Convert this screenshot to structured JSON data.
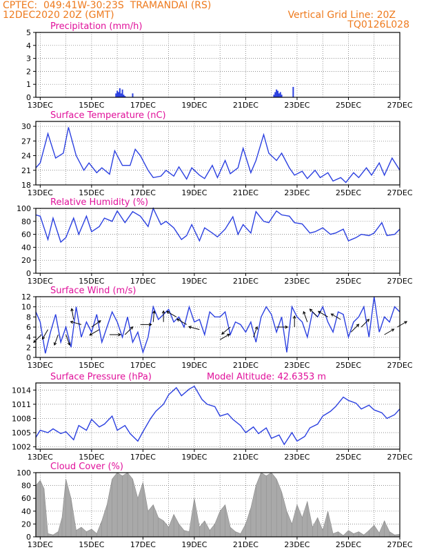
{
  "header": {
    "line1": "CPTEC:  049:41W-30:23S  TRAMANDAI (RS)",
    "line2": "12DEC2020 20Z (GMT)",
    "grid_note": "Vertical Grid Line: 20Z",
    "code": "TQ0126L028",
    "text_color": "#ee7a1d"
  },
  "colors": {
    "title": "#e0109a",
    "line": "#2a3fe0",
    "cloud": "#a9a9a9",
    "grid": "#666666"
  },
  "chart_data": [
    {
      "type": "bar",
      "title": "Precipitation (mm/h)",
      "x_ticks": [
        "13DEC",
        "15DEC",
        "17DEC",
        "19DEC",
        "21DEC",
        "23DEC",
        "25DEC",
        "27DEC"
      ],
      "x_range_days": [
        12.83,
        27.0
      ],
      "ylim": [
        0,
        5
      ],
      "yticks": [
        "0",
        "1",
        "2",
        "3",
        "4",
        "5"
      ],
      "series": [
        {
          "x": [
            15.95,
            16.0,
            16.05,
            16.1,
            16.15,
            16.2,
            16.25,
            16.3,
            16.6,
            22.1,
            22.15,
            22.2,
            22.25,
            22.3,
            22.35,
            22.4,
            22.85
          ],
          "values": [
            0.3,
            0.5,
            0.4,
            0.7,
            0.3,
            0.6,
            0.2,
            0.1,
            0.3,
            0.2,
            0.4,
            0.6,
            0.5,
            0.3,
            0.4,
            0.2,
            0.8
          ]
        }
      ]
    },
    {
      "type": "line",
      "title": "Surface Temperature (nC)",
      "x_ticks": [
        "13DEC",
        "15DEC",
        "17DEC",
        "19DEC",
        "21DEC",
        "23DEC",
        "25DEC",
        "27DEC"
      ],
      "x_range_days": [
        12.83,
        27.0
      ],
      "ylim": [
        18,
        31
      ],
      "yticks": [
        "18",
        "21",
        "24",
        "27",
        "30"
      ],
      "series": [
        {
          "x": [
            12.83,
            13.0,
            13.3,
            13.6,
            13.9,
            14.1,
            14.4,
            14.7,
            14.9,
            15.2,
            15.4,
            15.7,
            15.9,
            16.2,
            16.5,
            16.7,
            16.9,
            17.2,
            17.4,
            17.7,
            17.9,
            18.2,
            18.4,
            18.7,
            18.9,
            19.2,
            19.4,
            19.7,
            19.9,
            20.2,
            20.4,
            20.7,
            20.9,
            21.2,
            21.4,
            21.7,
            21.9,
            22.2,
            22.4,
            22.7,
            22.9,
            23.2,
            23.4,
            23.7,
            23.9,
            24.2,
            24.4,
            24.7,
            24.9,
            25.2,
            25.4,
            25.7,
            25.9,
            26.2,
            26.4,
            26.7,
            27.0
          ],
          "values": [
            21.5,
            22.5,
            28.5,
            23.5,
            24.5,
            29.8,
            24,
            21,
            22.5,
            20.5,
            21.5,
            20.2,
            25,
            22,
            22,
            25.3,
            24,
            21,
            19.5,
            19.8,
            21,
            19.8,
            21.7,
            19.2,
            21.5,
            20,
            19.3,
            22,
            19.5,
            23,
            20.3,
            21.5,
            25.5,
            20.5,
            23,
            28.3,
            24.5,
            23,
            24.5,
            21.5,
            20,
            20.8,
            19.3,
            21,
            19.5,
            20.5,
            18.8,
            19.5,
            18.5,
            20.5,
            19.5,
            21.5,
            20,
            22.5,
            20,
            23.5,
            21
          ]
        }
      ]
    },
    {
      "type": "line",
      "title": "Relative Humidity (%)",
      "x_ticks": [
        "13DEC",
        "15DEC",
        "17DEC",
        "19DEC",
        "21DEC",
        "23DEC",
        "25DEC",
        "27DEC"
      ],
      "x_range_days": [
        12.83,
        27.0
      ],
      "ylim": [
        0,
        100
      ],
      "yticks": [
        "0",
        "20",
        "40",
        "60",
        "80",
        "100"
      ],
      "series": [
        {
          "x": [
            12.83,
            13.0,
            13.3,
            13.5,
            13.8,
            14.0,
            14.3,
            14.5,
            14.8,
            15.0,
            15.3,
            15.5,
            15.8,
            16.0,
            16.3,
            16.6,
            16.9,
            17.2,
            17.4,
            17.7,
            17.9,
            18.2,
            18.5,
            18.7,
            18.9,
            19.2,
            19.4,
            19.7,
            19.9,
            20.2,
            20.5,
            20.7,
            20.9,
            21.2,
            21.4,
            21.7,
            21.9,
            22.2,
            22.4,
            22.7,
            22.9,
            23.2,
            23.5,
            23.7,
            24.0,
            24.3,
            24.5,
            24.8,
            25.0,
            25.3,
            25.5,
            25.8,
            26.0,
            26.3,
            26.5,
            26.8,
            27.0
          ],
          "values": [
            90,
            88,
            52,
            85,
            48,
            55,
            85,
            60,
            88,
            64,
            72,
            85,
            80,
            96,
            78,
            95,
            88,
            72,
            100,
            75,
            80,
            70,
            52,
            58,
            75,
            50,
            70,
            62,
            56,
            68,
            87,
            60,
            75,
            62,
            95,
            80,
            78,
            96,
            90,
            88,
            78,
            76,
            62,
            64,
            70,
            60,
            62,
            68,
            50,
            55,
            60,
            58,
            62,
            78,
            58,
            60,
            68
          ]
        }
      ]
    },
    {
      "type": "line",
      "title": "Surface Wind (m/s)",
      "note": "line shows speed; arrows show wind direction",
      "x_ticks": [
        "13DEC",
        "15DEC",
        "17DEC",
        "19DEC",
        "21DEC",
        "23DEC",
        "25DEC",
        "27DEC"
      ],
      "x_range_days": [
        12.83,
        27.0
      ],
      "ylim": [
        0,
        12
      ],
      "yticks": [
        "0",
        "2",
        "4",
        "6",
        "8",
        "10",
        "12"
      ],
      "series": [
        {
          "x": [
            12.83,
            13.0,
            13.2,
            13.4,
            13.6,
            13.8,
            14.0,
            14.2,
            14.4,
            14.6,
            14.8,
            15.0,
            15.2,
            15.4,
            15.6,
            15.8,
            16.0,
            16.2,
            16.4,
            16.6,
            16.8,
            17.0,
            17.2,
            17.4,
            17.6,
            17.8,
            18.0,
            18.2,
            18.4,
            18.6,
            18.8,
            19.0,
            19.2,
            19.4,
            19.6,
            19.8,
            20.0,
            20.2,
            20.4,
            20.6,
            20.8,
            21.0,
            21.2,
            21.4,
            21.6,
            21.8,
            22.0,
            22.2,
            22.4,
            22.6,
            22.8,
            23.0,
            23.2,
            23.4,
            23.6,
            23.8,
            24.0,
            24.2,
            24.4,
            24.6,
            24.8,
            25.0,
            25.2,
            25.4,
            25.6,
            25.8,
            26.0,
            26.2,
            26.4,
            26.6,
            26.8,
            27.0
          ],
          "values": [
            9,
            7,
            0.8,
            5,
            8.5,
            3,
            6,
            2,
            10,
            4,
            7,
            5,
            8.5,
            3,
            6,
            9,
            7,
            4,
            8,
            3,
            5,
            1,
            4,
            10,
            7.5,
            8.5,
            9.5,
            7,
            8,
            6,
            10,
            7,
            7.5,
            4.5,
            9,
            8,
            8,
            9,
            4.5,
            7,
            6.5,
            5,
            7,
            3,
            8,
            10,
            8.5,
            5,
            8,
            1,
            10,
            8,
            7,
            4,
            9,
            8,
            10,
            7,
            5,
            9,
            8.5,
            4,
            7,
            8,
            10,
            4,
            12,
            5,
            8,
            7,
            10,
            9
          ]
        }
      ],
      "arrows": [
        {
          "x": 13.05,
          "y": 4.5,
          "dir": 225
        },
        {
          "x": 13.3,
          "y": 5.5,
          "dir": 210
        },
        {
          "x": 13.7,
          "y": 4.5,
          "dir": 200
        },
        {
          "x": 14.0,
          "y": 4.5,
          "dir": 160
        },
        {
          "x": 14.3,
          "y": 7.5,
          "dir": 350
        },
        {
          "x": 14.6,
          "y": 6.5,
          "dir": 285
        },
        {
          "x": 15.0,
          "y": 6,
          "dir": 55
        },
        {
          "x": 15.3,
          "y": 5.5,
          "dir": 240
        },
        {
          "x": 15.7,
          "y": 4.5,
          "dir": 90
        },
        {
          "x": 16.3,
          "y": 4.5,
          "dir": 45
        },
        {
          "x": 16.9,
          "y": 6.5,
          "dir": 90
        },
        {
          "x": 17.4,
          "y": 7,
          "dir": 5
        },
        {
          "x": 17.8,
          "y": 7,
          "dir": 0
        },
        {
          "x": 18.3,
          "y": 8,
          "dir": 300
        },
        {
          "x": 18.7,
          "y": 6.5,
          "dir": 300
        },
        {
          "x": 19.2,
          "y": 5.5,
          "dir": 285
        },
        {
          "x": 20.0,
          "y": 3.5,
          "dir": 60
        },
        {
          "x": 20.4,
          "y": 6,
          "dir": 230
        },
        {
          "x": 21.3,
          "y": 4,
          "dir": 20
        },
        {
          "x": 22.2,
          "y": 6,
          "dir": 90
        },
        {
          "x": 22.9,
          "y": 6,
          "dir": 0
        },
        {
          "x": 23.4,
          "y": 7,
          "dir": 340
        },
        {
          "x": 23.8,
          "y": 8,
          "dir": 315
        },
        {
          "x": 24.2,
          "y": 8,
          "dir": 300
        },
        {
          "x": 24.7,
          "y": 7.5,
          "dir": 300
        },
        {
          "x": 25.1,
          "y": 5,
          "dir": 45
        },
        {
          "x": 25.5,
          "y": 6,
          "dir": 45
        },
        {
          "x": 26.4,
          "y": 4.5,
          "dir": 60
        },
        {
          "x": 26.9,
          "y": 6,
          "dir": 60
        }
      ]
    },
    {
      "type": "line",
      "title": "Surface Pressure (hPa)",
      "annotation": "Model Altitude: 42.6353 m",
      "x_ticks": [
        "13DEC",
        "15DEC",
        "17DEC",
        "19DEC",
        "21DEC",
        "23DEC",
        "25DEC",
        "27DEC"
      ],
      "x_range_days": [
        12.83,
        27.0
      ],
      "ylim": [
        1001.5,
        1015.5
      ],
      "yticks": [
        "1002",
        "1005",
        "1008",
        "1011",
        "1014"
      ],
      "series": [
        {
          "x": [
            12.83,
            13.0,
            13.3,
            13.5,
            13.8,
            14.0,
            14.3,
            14.5,
            14.8,
            15.0,
            15.3,
            15.5,
            15.8,
            16.0,
            16.3,
            16.5,
            16.8,
            17.0,
            17.3,
            17.5,
            17.8,
            18.0,
            18.3,
            18.5,
            18.8,
            19.0,
            19.3,
            19.5,
            19.8,
            20.0,
            20.3,
            20.5,
            20.8,
            21.0,
            21.3,
            21.5,
            21.8,
            22.0,
            22.3,
            22.5,
            22.8,
            23.0,
            23.3,
            23.5,
            23.8,
            24.0,
            24.3,
            24.5,
            24.8,
            25.0,
            25.3,
            25.5,
            25.8,
            26.0,
            26.3,
            26.5,
            26.8,
            27.0
          ],
          "values": [
            1004,
            1005.5,
            1005,
            1005.8,
            1004.8,
            1005.2,
            1003.5,
            1006.5,
            1005.5,
            1007.8,
            1006.2,
            1006.8,
            1008.5,
            1005.5,
            1006.5,
            1004.8,
            1003.2,
            1005.2,
            1008,
            1009.5,
            1011,
            1013,
            1014.5,
            1012.8,
            1014.2,
            1014.8,
            1012,
            1011,
            1010.5,
            1008.5,
            1009,
            1007.8,
            1006.5,
            1005,
            1006.2,
            1004.8,
            1006,
            1003.8,
            1004.5,
            1002.5,
            1005,
            1003.2,
            1004.2,
            1006,
            1006.8,
            1008.5,
            1009.5,
            1010.5,
            1012.5,
            1011.8,
            1011.2,
            1010,
            1010.8,
            1009.8,
            1009.2,
            1008,
            1008.8,
            1010
          ]
        }
      ]
    },
    {
      "type": "area",
      "title": "Cloud Cover (%)",
      "x_ticks": [
        "13DEC",
        "15DEC",
        "17DEC",
        "19DEC",
        "21DEC",
        "23DEC",
        "25DEC",
        "27DEC"
      ],
      "x_range_days": [
        12.83,
        27.0
      ],
      "ylim": [
        0,
        100
      ],
      "yticks": [
        "0",
        "20",
        "40",
        "60",
        "80",
        "100"
      ],
      "series": [
        {
          "x": [
            12.83,
            13.0,
            13.15,
            13.3,
            13.5,
            13.7,
            13.85,
            14.0,
            14.2,
            14.4,
            14.6,
            14.8,
            15.0,
            15.2,
            15.4,
            15.6,
            15.8,
            16.0,
            16.2,
            16.4,
            16.6,
            16.8,
            17.0,
            17.2,
            17.4,
            17.6,
            17.8,
            18.0,
            18.2,
            18.4,
            18.6,
            18.8,
            19.0,
            19.2,
            19.4,
            19.6,
            19.8,
            20.0,
            20.2,
            20.4,
            20.6,
            20.8,
            21.0,
            21.2,
            21.4,
            21.6,
            21.8,
            22.0,
            22.2,
            22.4,
            22.6,
            22.8,
            23.0,
            23.2,
            23.4,
            23.6,
            23.8,
            24.0,
            24.2,
            24.4,
            24.6,
            24.8,
            25.0,
            25.2,
            25.4,
            25.6,
            25.8,
            26.0,
            26.2,
            26.4,
            26.6,
            26.8,
            27.0
          ],
          "values": [
            80,
            88,
            75,
            5,
            3,
            8,
            30,
            90,
            60,
            10,
            15,
            8,
            12,
            5,
            25,
            50,
            90,
            100,
            95,
            100,
            90,
            60,
            85,
            40,
            50,
            30,
            25,
            15,
            35,
            20,
            10,
            8,
            60,
            15,
            25,
            10,
            20,
            40,
            50,
            15,
            8,
            5,
            20,
            45,
            80,
            100,
            95,
            100,
            90,
            70,
            40,
            20,
            50,
            30,
            55,
            15,
            30,
            10,
            40,
            5,
            8,
            2,
            10,
            5,
            8,
            3,
            10,
            18,
            6,
            25,
            8,
            3,
            4
          ]
        }
      ]
    }
  ]
}
